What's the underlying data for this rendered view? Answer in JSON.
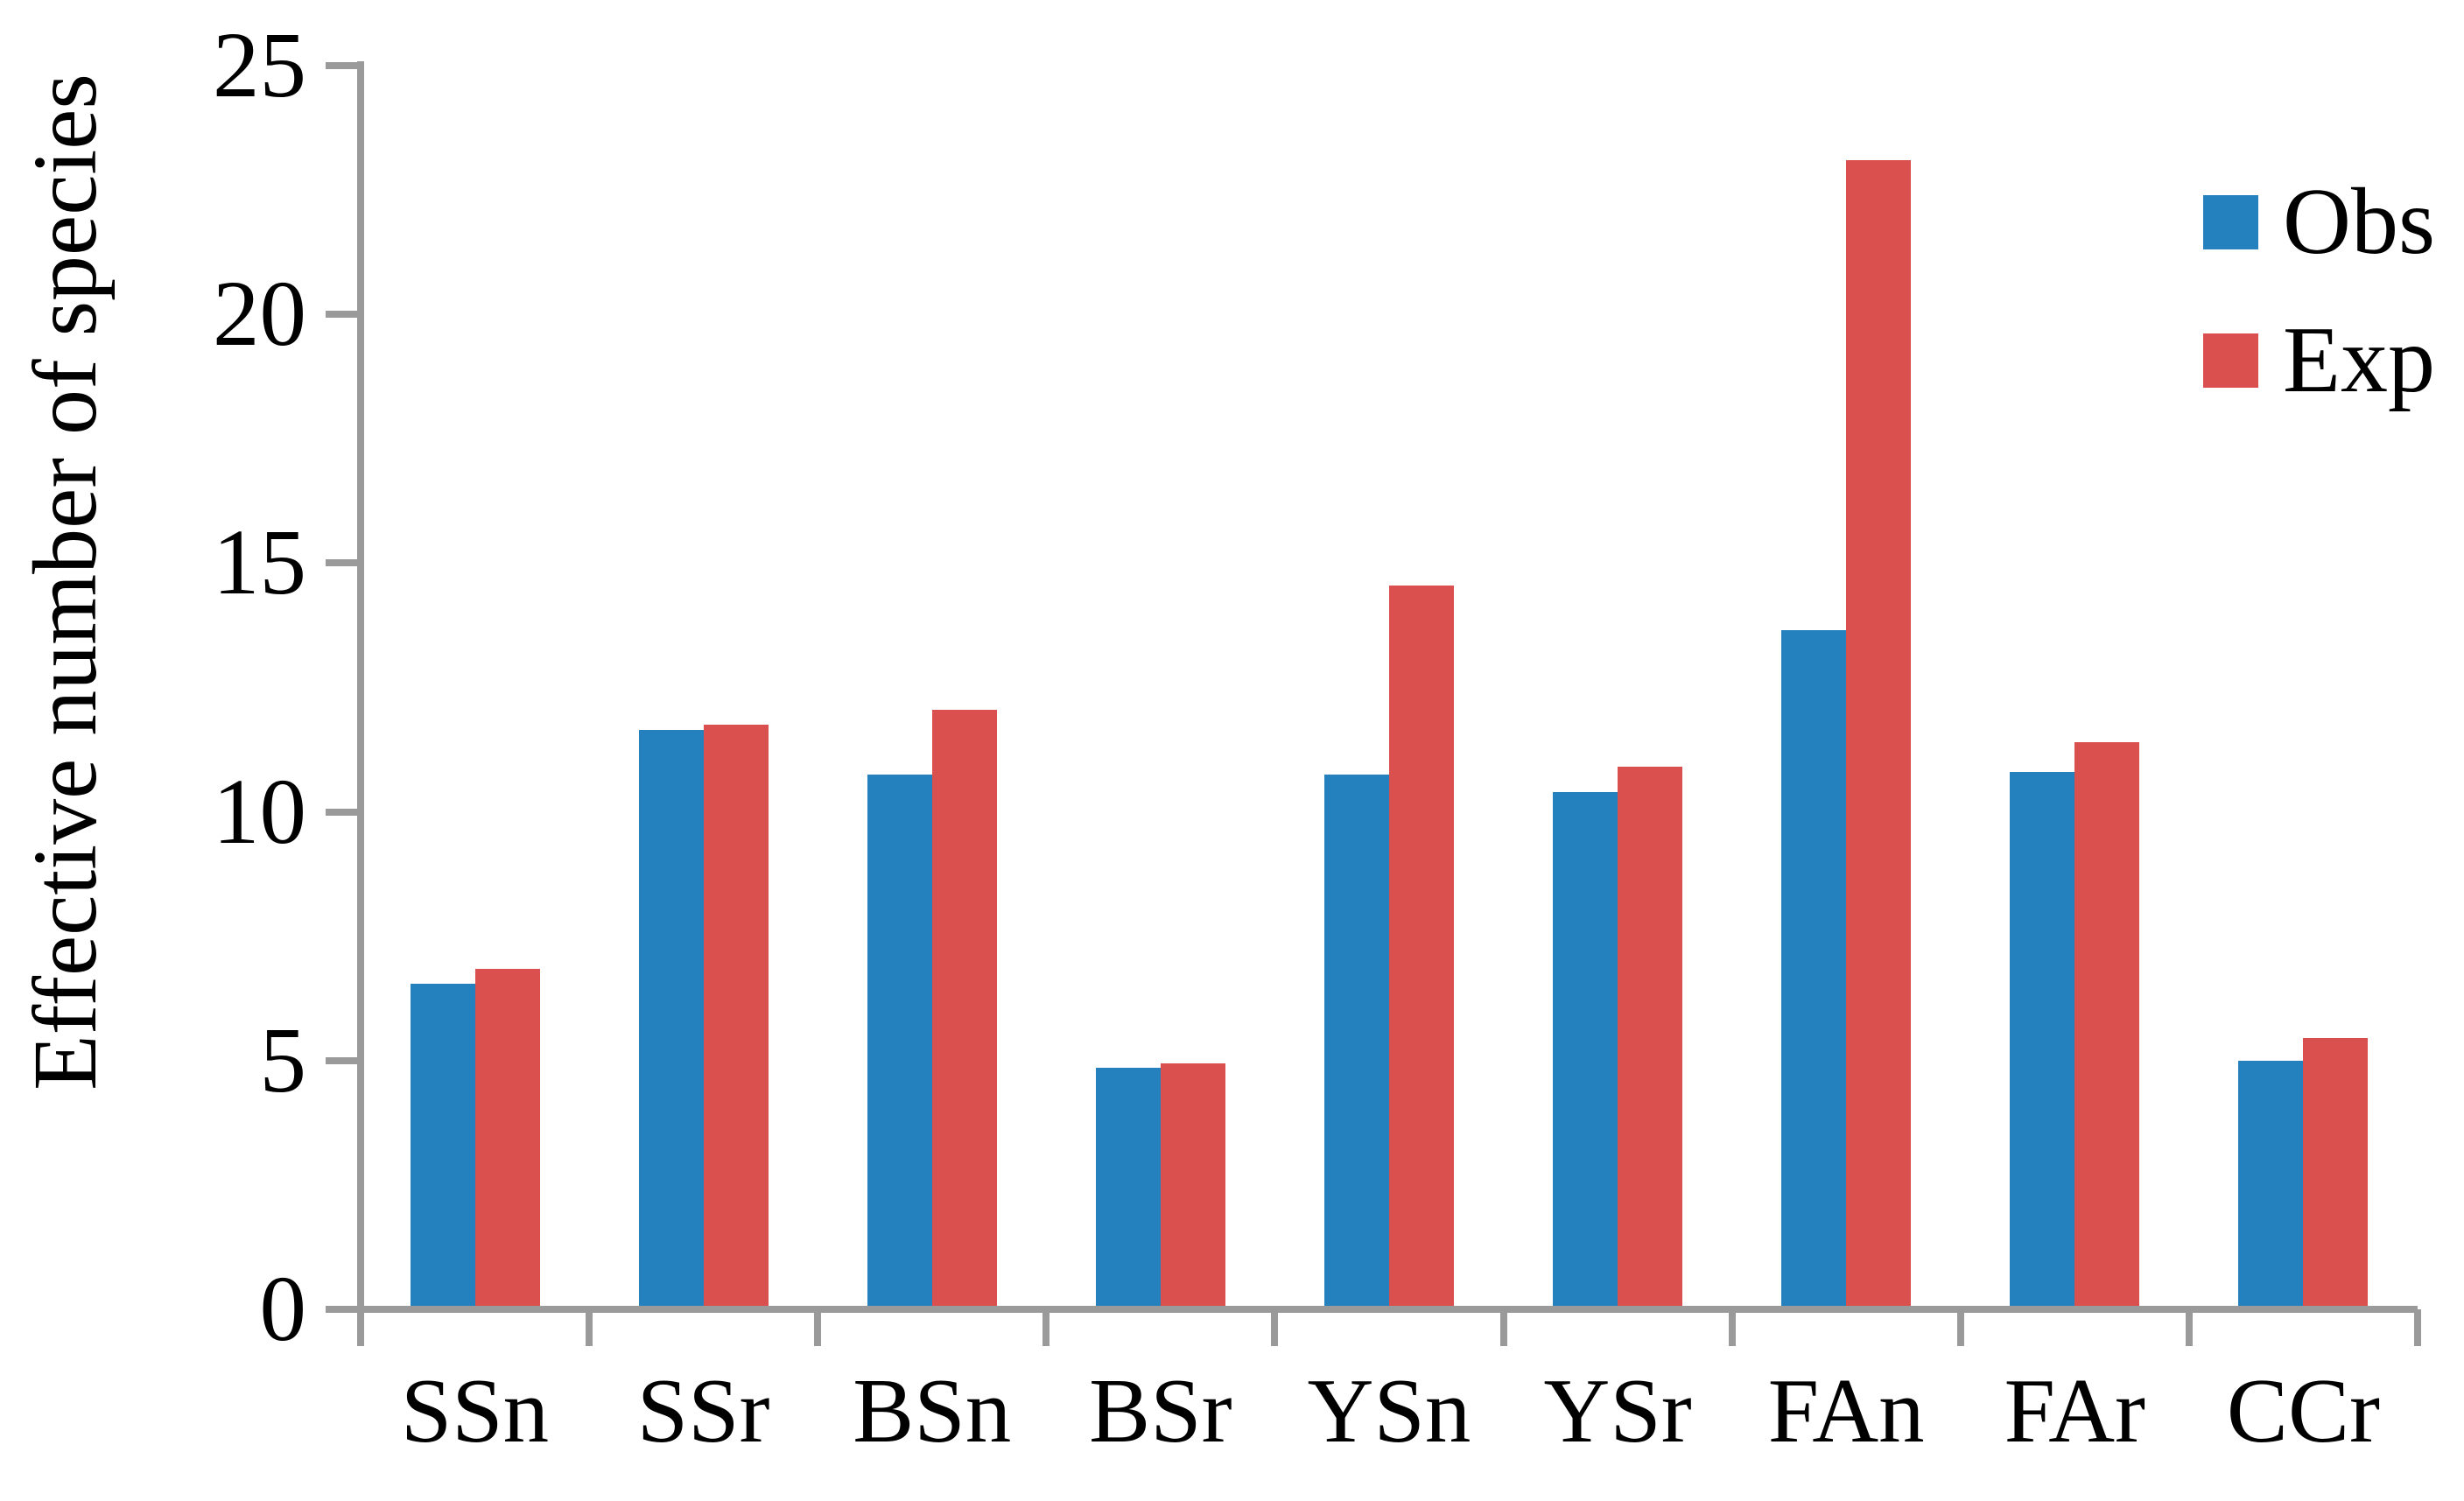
{
  "chart_data": {
    "type": "bar",
    "title": "",
    "xlabel": "",
    "ylabel": "Effective number of species",
    "categories": [
      "SSn",
      "SSr",
      "BSn",
      "BSr",
      "YSn",
      "YSr",
      "FAn",
      "FAr",
      "CCr"
    ],
    "series": [
      {
        "name": "Obs",
        "color": "#2581BE",
        "values": [
          6.55,
          11.65,
          10.75,
          4.85,
          10.75,
          10.4,
          13.65,
          10.8,
          5.0
        ]
      },
      {
        "name": "Exp",
        "color": "#D9504E",
        "values": [
          6.85,
          11.75,
          12.05,
          4.95,
          14.55,
          10.9,
          23.1,
          11.4,
          5.45
        ]
      }
    ],
    "ylim": [
      0,
      25
    ],
    "yticks": [
      0,
      5,
      10,
      15,
      20,
      25
    ],
    "grid": false,
    "legend_position": "top-right",
    "axis_color": "#9A9A9A",
    "text_color": "#000000"
  }
}
